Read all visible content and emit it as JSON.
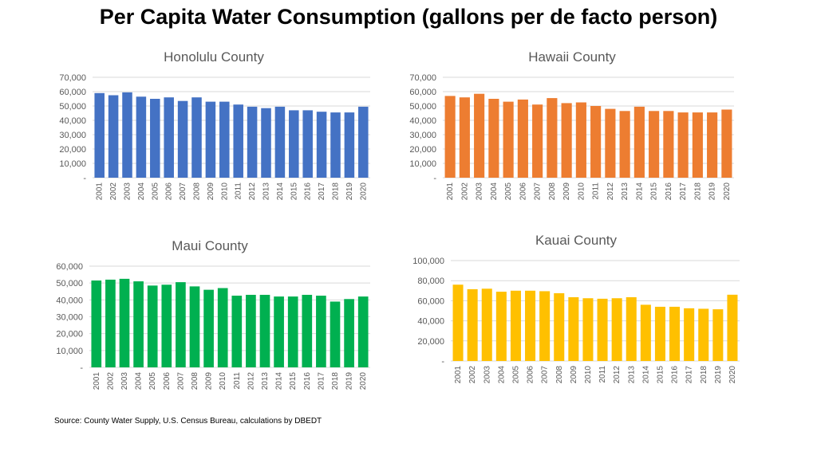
{
  "title": "Per Capita Water Consumption (gallons per de facto person)",
  "source": "Source: County Water Supply, U.S. Census Bureau, calculations by DBEDT",
  "chart_data": [
    {
      "type": "bar",
      "title": "Honolulu County",
      "color": "#4472C4",
      "categories": [
        "2001",
        "2002",
        "2003",
        "2004",
        "2005",
        "2006",
        "2007",
        "2008",
        "2009",
        "2010",
        "2011",
        "2012",
        "2013",
        "2014",
        "2015",
        "2016",
        "2017",
        "2018",
        "2019",
        "2020"
      ],
      "values": [
        59000,
        57500,
        59500,
        56500,
        55000,
        56000,
        53500,
        56000,
        53000,
        53000,
        51000,
        49500,
        48500,
        49500,
        47000,
        47000,
        46000,
        45500,
        45500,
        49500
      ],
      "ylim": [
        0,
        70000
      ],
      "yticks": [
        0,
        10000,
        20000,
        30000,
        40000,
        50000,
        60000,
        70000
      ],
      "ytick_labels": [
        "-",
        "10,000",
        "20,000",
        "30,000",
        "40,000",
        "50,000",
        "60,000",
        "70,000"
      ]
    },
    {
      "type": "bar",
      "title": "Hawaii County",
      "color": "#ED7D31",
      "categories": [
        "2001",
        "2002",
        "2003",
        "2004",
        "2005",
        "2006",
        "2007",
        "2008",
        "2009",
        "2010",
        "2011",
        "2012",
        "2013",
        "2014",
        "2015",
        "2016",
        "2017",
        "2018",
        "2019",
        "2020"
      ],
      "values": [
        57000,
        56000,
        58500,
        55000,
        53000,
        54500,
        51000,
        55500,
        52000,
        52500,
        50000,
        48000,
        46500,
        49500,
        46500,
        46500,
        45500,
        45500,
        45500,
        47500
      ],
      "ylim": [
        0,
        70000
      ],
      "yticks": [
        0,
        10000,
        20000,
        30000,
        40000,
        50000,
        60000,
        70000
      ],
      "ytick_labels": [
        "-",
        "10,000",
        "20,000",
        "30,000",
        "40,000",
        "50,000",
        "60,000",
        "70,000"
      ]
    },
    {
      "type": "bar",
      "title": "Maui County",
      "color": "#00B050",
      "categories": [
        "2001",
        "2002",
        "2003",
        "2004",
        "2005",
        "2006",
        "2007",
        "2008",
        "2009",
        "2010",
        "2011",
        "2012",
        "2013",
        "2014",
        "2015",
        "2016",
        "2017",
        "2018",
        "2019",
        "2020"
      ],
      "values": [
        51500,
        52000,
        52500,
        51000,
        48500,
        49000,
        50500,
        48000,
        46000,
        47000,
        42500,
        43000,
        43000,
        42000,
        42000,
        43000,
        42500,
        39000,
        40500,
        42000
      ],
      "ylim": [
        0,
        60000
      ],
      "yticks": [
        0,
        10000,
        20000,
        30000,
        40000,
        50000,
        60000
      ],
      "ytick_labels": [
        "-",
        "10,000",
        "20,000",
        "30,000",
        "40,000",
        "50,000",
        "60,000"
      ]
    },
    {
      "type": "bar",
      "title": "Kauai County",
      "color": "#FFC000",
      "categories": [
        "2001",
        "2002",
        "2003",
        "2004",
        "2005",
        "2006",
        "2007",
        "2008",
        "2009",
        "2010",
        "2011",
        "2012",
        "2013",
        "2014",
        "2015",
        "2016",
        "2017",
        "2018",
        "2019",
        "2020"
      ],
      "values": [
        76000,
        71500,
        72000,
        69000,
        70000,
        70000,
        69500,
        67500,
        63500,
        62500,
        62000,
        62500,
        63500,
        56000,
        54000,
        54000,
        52500,
        52000,
        51500,
        66000
      ],
      "ylim": [
        0,
        100000
      ],
      "yticks": [
        0,
        20000,
        40000,
        60000,
        80000,
        100000
      ],
      "ytick_labels": [
        "-",
        "20,000",
        "40,000",
        "60,000",
        "80,000",
        "100,000"
      ]
    }
  ]
}
